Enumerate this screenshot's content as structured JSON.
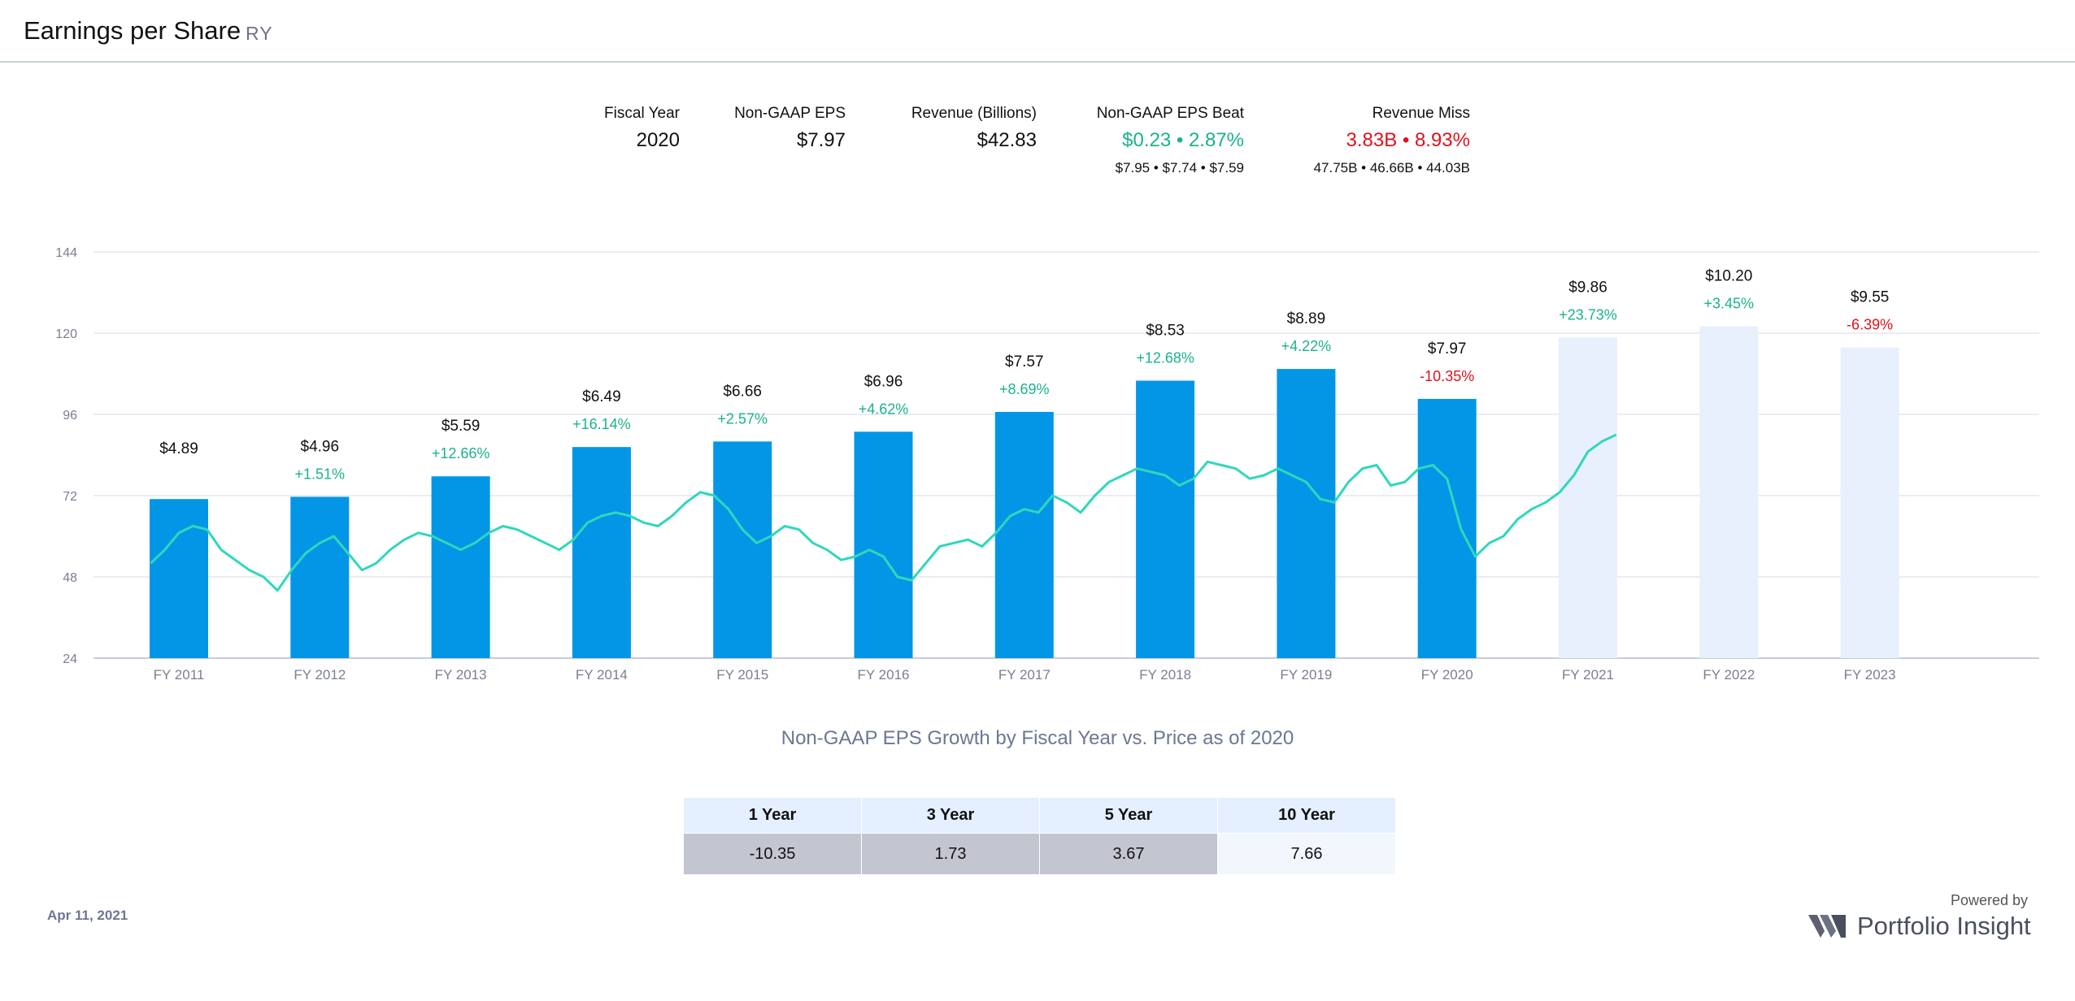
{
  "header": {
    "title": "Earnings per Share",
    "ticker": "RY"
  },
  "summary": {
    "fiscal_year": {
      "label": "Fiscal Year",
      "value": "2020"
    },
    "eps": {
      "label": "Non-GAAP EPS",
      "value": "$7.97"
    },
    "revenue": {
      "label": "Revenue (Billions)",
      "value": "$42.83"
    },
    "eps_beat": {
      "label": "Non-GAAP EPS Beat",
      "value": "$0.23 • 2.87%",
      "detail": "$7.95 • $7.74 • $7.59"
    },
    "revenue_miss": {
      "label": "Revenue Miss",
      "value": "3.83B • 8.93%",
      "detail": "47.75B • 46.66B • 44.03B"
    }
  },
  "colors": {
    "bar_actual": "#0396e6",
    "bar_estimate": "#e8effd",
    "price_line": "#2fd8ba",
    "positive": "#1ab38a",
    "negative": "#e0121a",
    "axis_text": "#7a7f90",
    "grid": "#e3e7ef"
  },
  "chart_data": {
    "type": "bar",
    "categories": [
      "FY 2011",
      "FY 2012",
      "FY 2013",
      "FY 2014",
      "FY 2015",
      "FY 2016",
      "FY 2017",
      "FY 2018",
      "FY 2019",
      "FY 2020",
      "FY 2021",
      "FY 2022",
      "FY 2023"
    ],
    "series": [
      {
        "values": [
          4.89,
          4.96,
          5.59,
          6.49,
          6.66,
          6.96,
          7.57,
          8.53,
          8.89,
          7.97,
          9.86,
          10.2,
          9.55
        ],
        "estimate": [
          false,
          false,
          false,
          false,
          false,
          false,
          false,
          false,
          false,
          false,
          true,
          true,
          true
        ]
      }
    ],
    "value_labels": [
      "$4.89",
      "$4.96",
      "$5.59",
      "$6.49",
      "$6.66",
      "$6.96",
      "$7.57",
      "$8.53",
      "$8.89",
      "$7.97",
      "$9.86",
      "$10.20",
      "$9.55"
    ],
    "growth_labels": [
      "",
      "+1.51%",
      "+12.66%",
      "+16.14%",
      "+2.57%",
      "+4.62%",
      "+8.69%",
      "+12.68%",
      "+4.22%",
      "-10.35%",
      "+23.73%",
      "+3.45%",
      "-6.39%"
    ],
    "y_ticks": [
      24,
      48,
      72,
      96,
      120,
      144
    ],
    "ylim": [
      24,
      144
    ],
    "price_series": {
      "x": [
        0.35,
        0.45,
        0.55,
        0.65,
        0.75,
        0.85,
        0.95,
        1.05,
        1.15,
        1.25,
        1.35,
        1.45,
        1.55,
        1.65,
        1.75,
        1.85,
        1.95,
        2.05,
        2.15,
        2.25,
        2.35,
        2.45,
        2.55,
        2.65,
        2.75,
        2.85,
        2.95,
        3.05,
        3.15,
        3.25,
        3.35,
        3.45,
        3.55,
        3.65,
        3.75,
        3.85,
        3.95,
        4.05,
        4.15,
        4.25,
        4.35,
        4.45,
        4.55,
        4.65,
        4.75,
        4.85,
        4.95,
        5.05,
        5.15,
        5.25,
        5.35,
        5.45,
        5.55,
        5.65,
        5.75,
        5.85,
        5.95,
        6.05,
        6.15,
        6.25,
        6.35,
        6.45,
        6.55,
        6.65,
        6.75,
        6.85,
        6.95,
        7.05,
        7.15,
        7.25,
        7.35,
        7.45,
        7.55,
        7.65,
        7.75,
        7.85,
        7.95,
        8.05,
        8.15,
        8.25,
        8.35,
        8.45,
        8.55,
        8.65,
        8.75,
        8.85,
        8.95,
        9.05,
        9.15,
        9.25,
        9.35,
        9.45,
        9.55,
        9.65,
        9.75,
        9.85,
        9.95,
        10.05,
        10.15,
        10.25,
        10.35,
        10.45,
        10.55,
        10.65,
        10.75
      ],
      "values": [
        52,
        56,
        61,
        63,
        62,
        56,
        53,
        50,
        48,
        44,
        50,
        55,
        58,
        60,
        55,
        50,
        52,
        56,
        59,
        61,
        60,
        58,
        56,
        58,
        61,
        63,
        62,
        60,
        58,
        56,
        59,
        64,
        66,
        67,
        66,
        64,
        63,
        66,
        70,
        73,
        72,
        68,
        62,
        58,
        60,
        63,
        62,
        58,
        56,
        53,
        54,
        56,
        54,
        48,
        47,
        52,
        57,
        58,
        59,
        57,
        61,
        66,
        68,
        67,
        72,
        70,
        67,
        72,
        76,
        78,
        80,
        79,
        78,
        75,
        77,
        82,
        81,
        80,
        77,
        78,
        80,
        78,
        76,
        71,
        70,
        76,
        80,
        81,
        75,
        76,
        80,
        81,
        77,
        62,
        54,
        58,
        60,
        65,
        68,
        70,
        73,
        78,
        85,
        88,
        90
      ]
    }
  },
  "chart_caption": "Non-GAAP EPS Growth by Fiscal Year vs. Price as of 2020",
  "growth_table": {
    "headers": [
      "1 Year",
      "3 Year",
      "5 Year",
      "10 Year"
    ],
    "values": [
      "-10.35",
      "1.73",
      "3.67",
      "7.66"
    ]
  },
  "footer": {
    "date": "Apr 11, 2021",
    "powered_by": "Powered by",
    "brand": "Portfolio Insight"
  }
}
